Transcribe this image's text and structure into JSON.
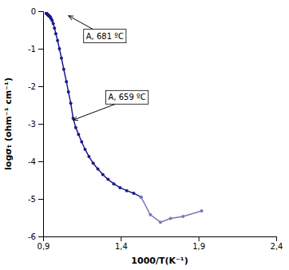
{
  "chart_data": {
    "type": "line",
    "xlabel": "1000/T(K⁻¹)",
    "ylabel": "logσₜ (ohm⁻¹ cm⁻¹)",
    "xlim": [
      0.9,
      2.4
    ],
    "ylim": [
      -6,
      0
    ],
    "xticks": [
      {
        "value": 0.9,
        "label": "0,9"
      },
      {
        "value": 1.4,
        "label": "1,4"
      },
      {
        "value": 1.9,
        "label": "1,9"
      },
      {
        "value": 2.4,
        "label": "2,4"
      }
    ],
    "yticks": [
      0,
      -1,
      -2,
      -3,
      -4,
      -5,
      -6
    ],
    "x": [
      0.92,
      0.922,
      0.924,
      0.927,
      0.929,
      0.932,
      0.934,
      0.937,
      0.939,
      0.942,
      0.945,
      0.948,
      0.952,
      0.958,
      0.965,
      0.973,
      0.982,
      0.993,
      1.005,
      1.018,
      1.033,
      1.05,
      1.063,
      1.078,
      1.093,
      1.11,
      1.128,
      1.148,
      1.17,
      1.195,
      1.222,
      1.252,
      1.284,
      1.318,
      1.355,
      1.395,
      1.438,
      1.483,
      1.53,
      1.59,
      1.655,
      1.72,
      1.8,
      1.92
    ],
    "series": [
      {
        "color": "#1a1a8c",
        "marker": "circle",
        "values": [
          -0.06,
          -0.07,
          -0.07,
          -0.08,
          -0.09,
          -0.1,
          -0.11,
          -0.12,
          -0.13,
          -0.14,
          -0.15,
          -0.17,
          -0.2,
          -0.25,
          -0.33,
          -0.45,
          -0.6,
          -0.78,
          -1.0,
          -1.25,
          -1.55,
          -1.88,
          -2.15,
          -2.45,
          -2.85,
          -3.1,
          -3.28,
          -3.48,
          -3.68,
          -3.87,
          -4.05,
          -4.2,
          -4.35,
          -4.48,
          -4.6,
          -4.7,
          -4.78,
          -4.85,
          -4.95,
          null,
          null,
          null,
          null,
          null
        ]
      },
      {
        "color": "#7777bb",
        "marker": "circle",
        "values": [
          null,
          null,
          null,
          null,
          null,
          null,
          null,
          null,
          null,
          null,
          null,
          null,
          null,
          null,
          null,
          null,
          null,
          null,
          null,
          null,
          null,
          null,
          null,
          null,
          null,
          null,
          null,
          null,
          null,
          null,
          null,
          null,
          null,
          null,
          null,
          null,
          null,
          null,
          -4.95,
          -5.42,
          -5.62,
          -5.52,
          -5.47,
          -5.32
        ]
      }
    ],
    "annotations": [
      {
        "text": "A, 681 ºC",
        "x": 1.063,
        "y": -0.12
      },
      {
        "text": "A, 659 ºC",
        "x": 1.093,
        "y": -2.9
      }
    ]
  }
}
